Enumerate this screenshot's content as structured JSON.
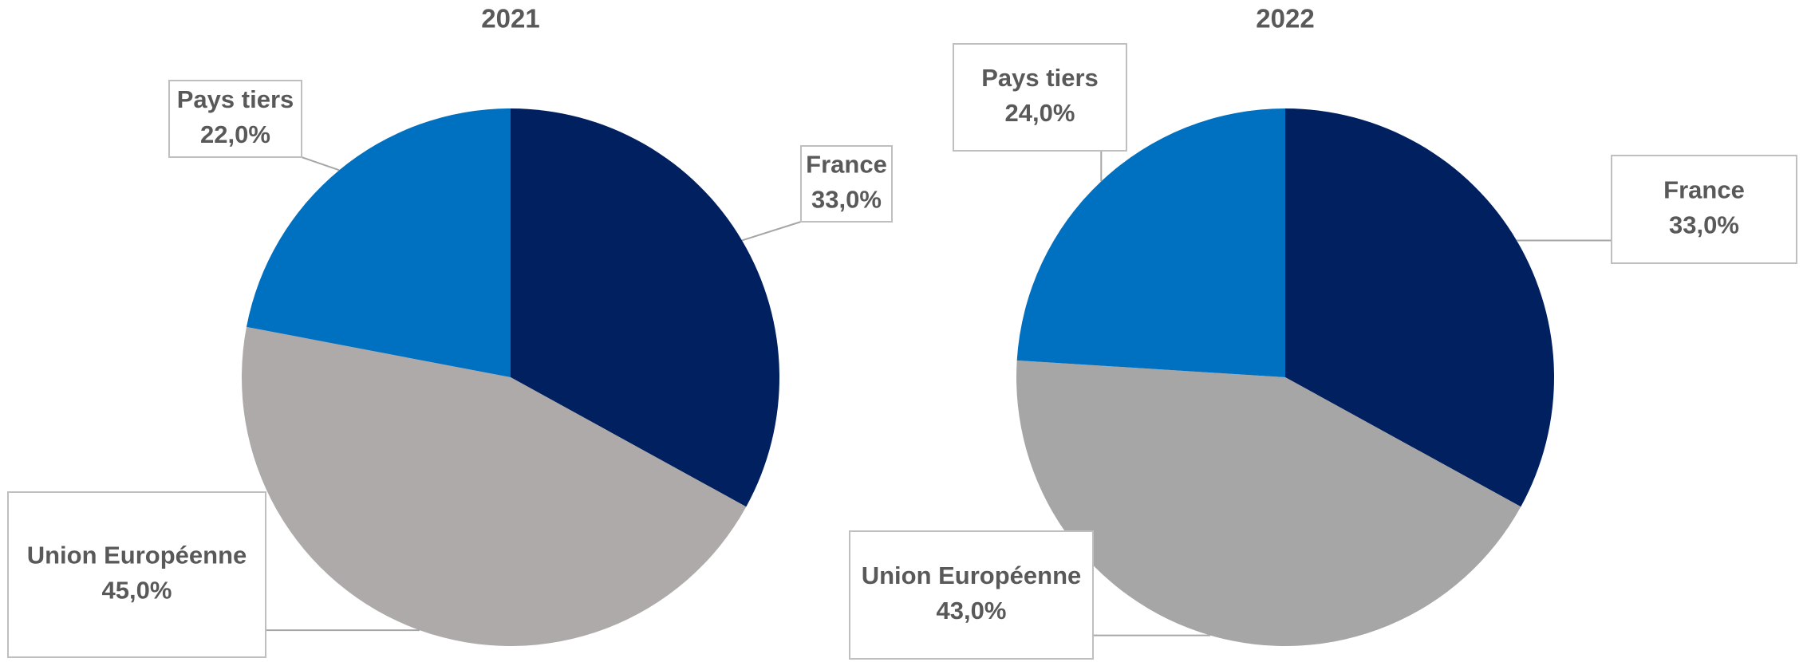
{
  "chart_data": [
    {
      "type": "pie",
      "title": "2021",
      "categories": [
        "France",
        "Union Européenne",
        "Pays tiers"
      ],
      "values": [
        33,
        45,
        22
      ],
      "value_labels": [
        "33,0%",
        "45,0%",
        "22,0%"
      ],
      "colors": [
        "#002060",
        "#aeaaaa",
        "#0070c0"
      ]
    },
    {
      "type": "pie",
      "title": "2022",
      "categories": [
        "France",
        "Union Européenne",
        "Pays tiers"
      ],
      "values": [
        33,
        43,
        24
      ],
      "value_labels": [
        "33,0%",
        "43,0%",
        "24,0%"
      ],
      "colors": [
        "#002060",
        "#a6a6a6",
        "#0070c0"
      ]
    }
  ]
}
